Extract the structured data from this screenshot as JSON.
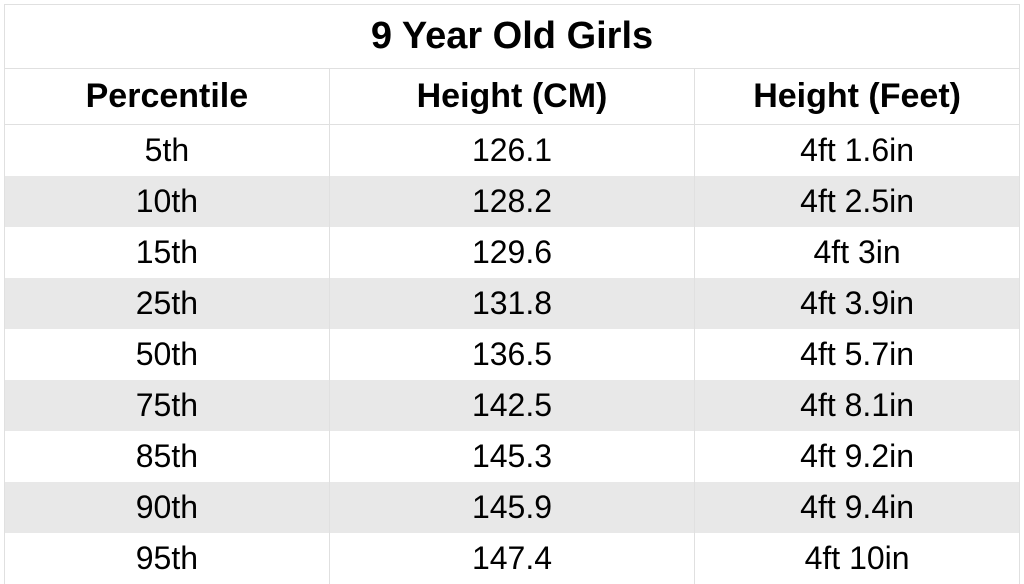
{
  "table": {
    "title": "9 Year Old Girls",
    "title_fontsize": 38,
    "title_fontweight": "bold",
    "header_fontsize": 34,
    "header_fontweight": "bold",
    "cell_fontsize": 32,
    "background_color": "#ffffff",
    "stripe_color_odd": "#ffffff",
    "stripe_color_even": "#e8e8e8",
    "border_color": "#e0e0e0",
    "text_color": "#000000",
    "columns": [
      {
        "key": "percentile",
        "label": "Percentile",
        "width_pct": 32,
        "align": "center"
      },
      {
        "key": "height_cm",
        "label": "Height (CM)",
        "width_pct": 36,
        "align": "center"
      },
      {
        "key": "height_feet",
        "label": "Height (Feet)",
        "width_pct": 32,
        "align": "center"
      }
    ],
    "rows": [
      {
        "percentile": "5th",
        "height_cm": "126.1",
        "height_feet": "4ft 1.6in"
      },
      {
        "percentile": "10th",
        "height_cm": "128.2",
        "height_feet": "4ft 2.5in"
      },
      {
        "percentile": "15th",
        "height_cm": "129.6",
        "height_feet": "4ft 3in"
      },
      {
        "percentile": "25th",
        "height_cm": "131.8",
        "height_feet": "4ft 3.9in"
      },
      {
        "percentile": "50th",
        "height_cm": "136.5",
        "height_feet": "4ft 5.7in"
      },
      {
        "percentile": "75th",
        "height_cm": "142.5",
        "height_feet": "4ft 8.1in"
      },
      {
        "percentile": "85th",
        "height_cm": "145.3",
        "height_feet": "4ft 9.2in"
      },
      {
        "percentile": "90th",
        "height_cm": "145.9",
        "height_feet": "4ft 9.4in"
      },
      {
        "percentile": "95th",
        "height_cm": "147.4",
        "height_feet": "4ft 10in"
      }
    ]
  }
}
